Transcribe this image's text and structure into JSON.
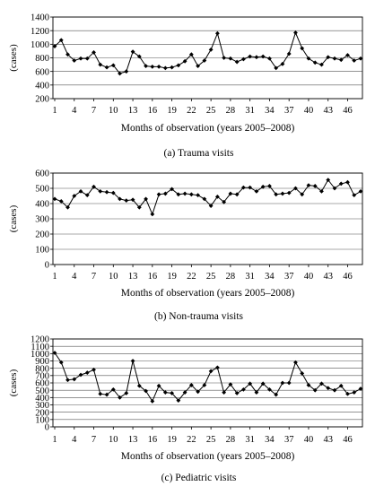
{
  "chart_data": [
    {
      "type": "line",
      "caption": "(a)  Trauma visits",
      "ylabel": "(cases)",
      "xlabel": "Months of observation (years 2005–2008)",
      "ylim": [
        200,
        1400
      ],
      "yticks": [
        200,
        400,
        600,
        800,
        1000,
        1200,
        1400
      ],
      "xlim": [
        1,
        48
      ],
      "xticks": [
        1,
        4,
        7,
        10,
        13,
        16,
        19,
        22,
        25,
        28,
        31,
        34,
        37,
        40,
        43,
        46
      ],
      "grid": "horizontal",
      "x": [
        1,
        2,
        3,
        4,
        5,
        6,
        7,
        8,
        9,
        10,
        11,
        12,
        13,
        14,
        15,
        16,
        17,
        18,
        19,
        20,
        21,
        22,
        23,
        24,
        25,
        26,
        27,
        28,
        29,
        30,
        31,
        32,
        33,
        34,
        35,
        36,
        37,
        38,
        39,
        40,
        41,
        42,
        43,
        44,
        45,
        46,
        47,
        48
      ],
      "values": [
        970,
        1060,
        850,
        760,
        790,
        790,
        880,
        700,
        660,
        690,
        570,
        600,
        890,
        820,
        680,
        670,
        670,
        650,
        660,
        690,
        750,
        850,
        680,
        760,
        920,
        1160,
        800,
        790,
        740,
        780,
        820,
        810,
        820,
        790,
        650,
        710,
        860,
        1170,
        940,
        790,
        730,
        700,
        810,
        790,
        770,
        840,
        760,
        790
      ]
    },
    {
      "type": "line",
      "caption": "(b)  Non-trauma visits",
      "ylabel": "(cases)",
      "xlabel": "Months of observation (years 2005–2008)",
      "ylim": [
        0,
        600
      ],
      "yticks": [
        0,
        100,
        200,
        300,
        400,
        500,
        600
      ],
      "xlim": [
        1,
        48
      ],
      "xticks": [
        1,
        4,
        7,
        10,
        13,
        16,
        19,
        22,
        25,
        28,
        31,
        34,
        37,
        40,
        43,
        46
      ],
      "grid": "horizontal",
      "x": [
        1,
        2,
        3,
        4,
        5,
        6,
        7,
        8,
        9,
        10,
        11,
        12,
        13,
        14,
        15,
        16,
        17,
        18,
        19,
        20,
        21,
        22,
        23,
        24,
        25,
        26,
        27,
        28,
        29,
        30,
        31,
        32,
        33,
        34,
        35,
        36,
        37,
        38,
        39,
        40,
        41,
        42,
        43,
        44,
        45,
        46,
        47,
        48
      ],
      "values": [
        430,
        415,
        375,
        450,
        480,
        455,
        510,
        480,
        475,
        470,
        430,
        420,
        425,
        375,
        430,
        330,
        460,
        465,
        495,
        460,
        465,
        460,
        455,
        430,
        385,
        445,
        410,
        465,
        460,
        505,
        505,
        480,
        510,
        515,
        460,
        465,
        470,
        500,
        460,
        520,
        515,
        480,
        555,
        500,
        530,
        540,
        455,
        480
      ]
    },
    {
      "type": "line",
      "caption": "(c)  Pediatric visits",
      "ylabel": "(cases)",
      "xlabel": "Months of observation (years 2005–2008)",
      "ylim": [
        0,
        1200
      ],
      "yticks": [
        0,
        100,
        200,
        300,
        400,
        500,
        600,
        700,
        800,
        900,
        1000,
        1100,
        1200
      ],
      "xlim": [
        1,
        48
      ],
      "xticks": [
        1,
        4,
        7,
        10,
        13,
        16,
        19,
        22,
        25,
        28,
        31,
        34,
        37,
        40,
        43,
        46
      ],
      "grid": "horizontal",
      "x": [
        1,
        2,
        3,
        4,
        5,
        6,
        7,
        8,
        9,
        10,
        11,
        12,
        13,
        14,
        15,
        16,
        17,
        18,
        19,
        20,
        21,
        22,
        23,
        24,
        25,
        26,
        27,
        28,
        29,
        30,
        31,
        32,
        33,
        34,
        35,
        36,
        37,
        38,
        39,
        40,
        41,
        42,
        43,
        44,
        45,
        46,
        47,
        48
      ],
      "values": [
        1010,
        880,
        640,
        650,
        710,
        740,
        780,
        450,
        440,
        510,
        400,
        460,
        900,
        560,
        490,
        350,
        560,
        470,
        460,
        360,
        470,
        570,
        480,
        570,
        760,
        810,
        470,
        580,
        460,
        510,
        590,
        470,
        590,
        510,
        440,
        600,
        600,
        880,
        730,
        570,
        500,
        590,
        530,
        500,
        560,
        450,
        470,
        520
      ]
    }
  ]
}
